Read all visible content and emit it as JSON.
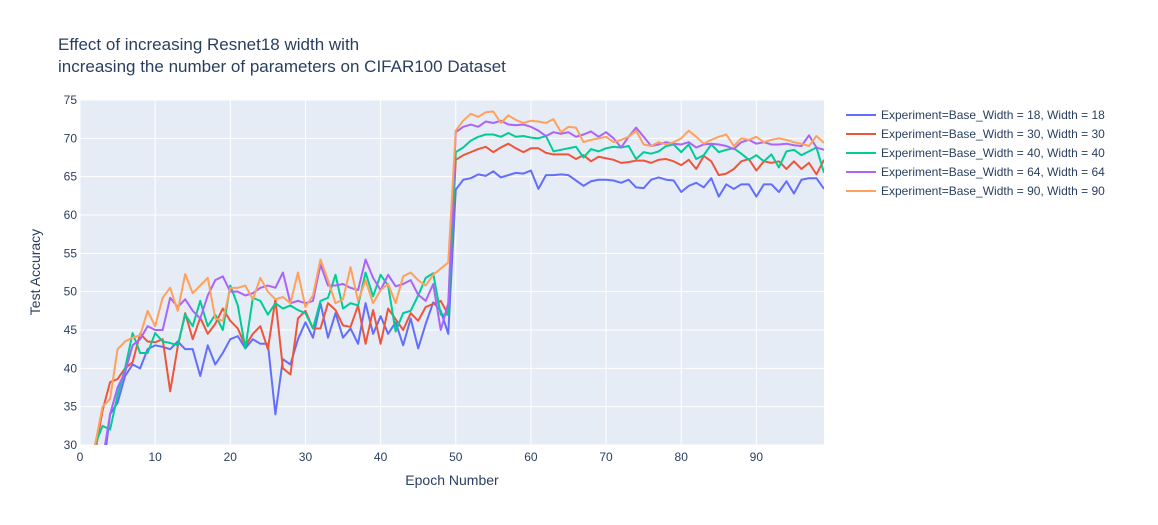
{
  "chart_data": {
    "type": "line",
    "title": [
      "Effect of increasing Resnet18 width with",
      "increasing the number of parameters on CIFAR100 Dataset"
    ],
    "xlabel": "Epoch Number",
    "ylabel": "Test Accuracy",
    "xlim": [
      0,
      99
    ],
    "ylim": [
      30,
      75
    ],
    "xticks": [
      0,
      10,
      20,
      30,
      40,
      50,
      60,
      70,
      80,
      90
    ],
    "yticks": [
      30,
      35,
      40,
      45,
      50,
      55,
      60,
      65,
      70,
      75
    ],
    "grid": true,
    "legend_position": "right",
    "background": "#e5ecf6",
    "x": [
      1,
      2,
      3,
      4,
      5,
      6,
      7,
      8,
      9,
      10,
      11,
      12,
      13,
      14,
      15,
      16,
      17,
      18,
      19,
      20,
      21,
      22,
      23,
      24,
      25,
      26,
      27,
      28,
      29,
      30,
      31,
      32,
      33,
      34,
      35,
      36,
      37,
      38,
      39,
      40,
      41,
      42,
      43,
      44,
      45,
      46,
      47,
      48,
      49,
      50,
      51,
      52,
      53,
      54,
      55,
      56,
      57,
      58,
      59,
      60,
      61,
      62,
      63,
      64,
      65,
      66,
      67,
      68,
      69,
      70,
      71,
      72,
      73,
      74,
      75,
      76,
      77,
      78,
      79,
      80,
      81,
      82,
      83,
      84,
      85,
      86,
      87,
      88,
      89,
      90,
      91,
      92,
      93,
      94,
      95,
      96,
      97,
      98,
      99
    ],
    "series": [
      {
        "name": "Experiment=Base_Width = 18, Width = 18",
        "color": "#636efa",
        "values": [
          22,
          28,
          26,
          34,
          35.5,
          39,
          40.5,
          40,
          42.5,
          43,
          42.8,
          42.5,
          43.5,
          42.5,
          42.5,
          39,
          43,
          40.5,
          42,
          43.8,
          44.2,
          42.6,
          43.8,
          43.2,
          43.2,
          34,
          41.2,
          40.5,
          43.8,
          46,
          44,
          48.5,
          44,
          47.2,
          44,
          45.2,
          43.2,
          48.5,
          44.5,
          46.8,
          44.5,
          46,
          43,
          46.5,
          42.6,
          45.8,
          48.6,
          47.5,
          44.5,
          63.3,
          64.6,
          64.8,
          65.3,
          65.1,
          65.7,
          64.9,
          65.2,
          65.5,
          65.4,
          65.8,
          63.4,
          65.2,
          65.2,
          65.3,
          65.2,
          64.5,
          63.8,
          64.4,
          64.6,
          64.6,
          64.5,
          64.2,
          64.6,
          63.6,
          63.5,
          64.6,
          64.9,
          64.6,
          64.5,
          63,
          63.8,
          64.2,
          63.6,
          64.8,
          62.4,
          64,
          63.4,
          64,
          64,
          62.4,
          64,
          64,
          63,
          64.4,
          62.8,
          64.6,
          64.8,
          64.8,
          63.4
        ]
      },
      {
        "name": "Experiment=Base_Width = 30, Width = 30",
        "color": "#ef553b",
        "values": [
          21,
          29,
          34.5,
          38.2,
          38.6,
          40,
          40.8,
          44.5,
          43.5,
          43.4,
          43.8,
          37,
          42.8,
          47.2,
          43.8,
          46.6,
          44.5,
          45.8,
          47.8,
          46.2,
          45.2,
          42.9,
          44.5,
          45.5,
          42.5,
          49,
          40,
          39.2,
          46.5,
          47.5,
          45.2,
          45.2,
          48.5,
          47.6,
          45.6,
          45.4,
          48.2,
          43.2,
          47.6,
          43.2,
          47.8,
          46.4,
          45,
          47.2,
          46.2,
          48,
          48.4,
          48.8,
          47,
          67.2,
          67.8,
          68.2,
          68.6,
          68.9,
          68.2,
          68.8,
          69.3,
          68.7,
          68.2,
          68.7,
          68.7,
          68.1,
          67.9,
          67.9,
          67.9,
          67.3,
          67.8,
          67,
          67.6,
          67.4,
          67.2,
          66.8,
          66.9,
          67.1,
          67.1,
          66.8,
          67.2,
          67.3,
          67,
          66.5,
          67.2,
          66,
          67.7,
          67,
          65.2,
          65.4,
          66,
          67,
          67.3,
          65.8,
          67,
          66.8,
          67,
          66,
          67,
          66,
          66.8,
          65.3,
          67.2
        ]
      },
      {
        "name": "Experiment=Base_Width = 40, Width = 40",
        "color": "#00cc96",
        "values": [
          22,
          30,
          32.5,
          32,
          36.5,
          40,
          44.6,
          42,
          42,
          44.6,
          43.5,
          43.3,
          43,
          47,
          45.5,
          48.8,
          45.5,
          47,
          45,
          50.8,
          48.2,
          42.6,
          49.2,
          48.8,
          47,
          48.5,
          47.8,
          48.2,
          47.6,
          47.2,
          45.2,
          48.8,
          49.2,
          52.2,
          47.8,
          48.5,
          48.2,
          52.5,
          49.4,
          52.2,
          50.8,
          44.8,
          47.2,
          47.5,
          49.5,
          51.8,
          52.4,
          47,
          47,
          68.2,
          68.8,
          69.7,
          70.2,
          70.5,
          70.5,
          70.2,
          70.7,
          70.2,
          70.3,
          70.1,
          70,
          70.3,
          68.3,
          68.5,
          68.7,
          68.9,
          67.5,
          68.6,
          68.3,
          68.7,
          68.9,
          68.8,
          69,
          67.3,
          68.2,
          68,
          68.3,
          69,
          69.2,
          68.2,
          69.2,
          67.3,
          67.8,
          69.2,
          68.2,
          68.5,
          68.7,
          68,
          67.2,
          67.8,
          67,
          67.9,
          66.2,
          68.3,
          68.5,
          67.8,
          68.3,
          68.8,
          65.5
        ]
      },
      {
        "name": "Experiment=Base_Width = 64, Width = 64",
        "color": "#ab63fa",
        "values": [
          22,
          30,
          28,
          34,
          37.5,
          39.5,
          43,
          43.8,
          45.5,
          45,
          45,
          49.2,
          48,
          49,
          47.5,
          46.5,
          49.5,
          51.5,
          52,
          50,
          50,
          49.5,
          49.8,
          50.5,
          50.8,
          50.5,
          52.5,
          48.5,
          48.8,
          48.5,
          48.8,
          53.5,
          50.8,
          50.8,
          51,
          50.5,
          50.2,
          54.2,
          51.8,
          50.2,
          52.2,
          50.7,
          51,
          51.5,
          49.6,
          48.8,
          51,
          45,
          48.5,
          70.8,
          71.5,
          71.8,
          71.5,
          72.2,
          72,
          72.3,
          71.8,
          71.7,
          71.8,
          71.5,
          71,
          70.3,
          70.8,
          70.6,
          70.8,
          70.2,
          70.5,
          70.9,
          70.2,
          70.8,
          70,
          68.8,
          70.2,
          71.4,
          70.2,
          69,
          69.2,
          69.5,
          69.3,
          69.2,
          69.5,
          68.8,
          69.2,
          69.3,
          69.2,
          69,
          68.6,
          69.5,
          69.8,
          69.3,
          69.5,
          69.2,
          69.2,
          69.3,
          69.1,
          69,
          70.4,
          68.8,
          68.5
        ]
      },
      {
        "name": "Experiment=Base_Width = 90, Width = 90",
        "color": "#ffa15a",
        "values": [
          22,
          30,
          35,
          36,
          42.5,
          43.5,
          44,
          44.3,
          47.5,
          45.5,
          49.2,
          50.5,
          47.5,
          52.3,
          49.8,
          50.8,
          51.8,
          46.5,
          46.2,
          50.5,
          50.5,
          50.8,
          49,
          51.8,
          50,
          49,
          49.3,
          48.5,
          52.5,
          48,
          49.5,
          54.2,
          51.5,
          48.5,
          49,
          53.2,
          48.8,
          51.5,
          48.5,
          50.2,
          51,
          48.5,
          52,
          52.5,
          51.5,
          50.8,
          52.2,
          53,
          53.8,
          71,
          72.3,
          73.2,
          72.8,
          73.4,
          73.5,
          72,
          73,
          72.4,
          72,
          72.3,
          72.2,
          72,
          72.5,
          70.8,
          71.5,
          71.4,
          69.5,
          69.8,
          70,
          70.2,
          69.5,
          69.8,
          70.2,
          71,
          69.2,
          69,
          69.5,
          69.2,
          69.5,
          70,
          71,
          70.2,
          69.3,
          69.8,
          70.2,
          70.5,
          69,
          70,
          69.8,
          70.2,
          69.5,
          69.8,
          70,
          69.8,
          69.5,
          69.3,
          69,
          70.3,
          69.4
        ]
      }
    ]
  }
}
